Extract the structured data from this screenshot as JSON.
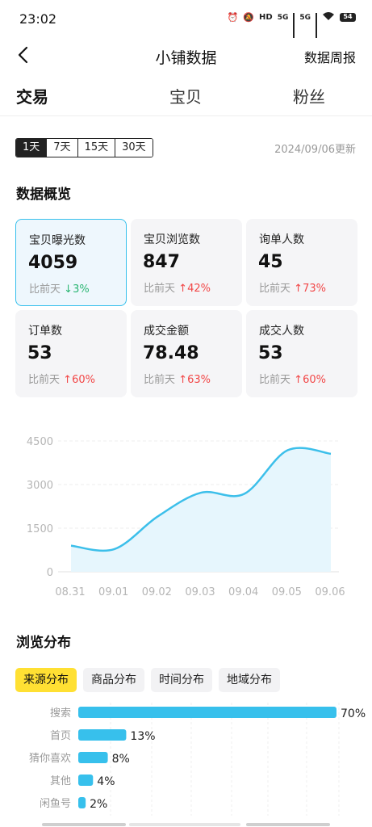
{
  "status": {
    "time": "23:02",
    "battery": "54",
    "net1": "5G",
    "net2": "5G",
    "hd": "HD"
  },
  "nav": {
    "title": "小铺数据",
    "action": "数据周报"
  },
  "tabs": [
    {
      "label": "交易",
      "active": true
    },
    {
      "label": "宝贝",
      "active": false
    },
    {
      "label": "粉丝",
      "active": false
    }
  ],
  "range": {
    "options": [
      "1天",
      "7天",
      "15天",
      "30天"
    ],
    "selected": "1天",
    "updated": "2024/09/06更新"
  },
  "overview": {
    "title": "数据概览",
    "cards": [
      {
        "label": "宝贝曝光数",
        "value": "4059",
        "cmp_prefix": "比前天",
        "arrow": "↓",
        "change": "3%",
        "dir": "down",
        "selected": true
      },
      {
        "label": "宝贝浏览数",
        "value": "847",
        "cmp_prefix": "比前天",
        "arrow": "↑",
        "change": "42%",
        "dir": "up",
        "selected": false
      },
      {
        "label": "询单人数",
        "value": "45",
        "cmp_prefix": "比前天",
        "arrow": "↑",
        "change": "73%",
        "dir": "up",
        "selected": false
      },
      {
        "label": "订单数",
        "value": "53",
        "cmp_prefix": "比前天",
        "arrow": "↑",
        "change": "60%",
        "dir": "up",
        "selected": false
      },
      {
        "label": "成交金额",
        "value": "78.48",
        "cmp_prefix": "比前天",
        "arrow": "↑",
        "change": "63%",
        "dir": "up",
        "selected": false
      },
      {
        "label": "成交人数",
        "value": "53",
        "cmp_prefix": "比前天",
        "arrow": "↑",
        "change": "60%",
        "dir": "up",
        "selected": false
      }
    ]
  },
  "chart_data": {
    "type": "area",
    "x": [
      "08.31",
      "09.01",
      "09.02",
      "09.03",
      "09.04",
      "09.05",
      "09.06"
    ],
    "series": [
      {
        "values": [
          900,
          780,
          1900,
          2720,
          2680,
          4180,
          4059
        ]
      }
    ],
    "yticks": [
      0,
      1500,
      3000,
      4500
    ],
    "ylim": [
      0,
      4500
    ],
    "grid": true,
    "line_color": "#3CBFEA",
    "fill_color": "#E6F6FD"
  },
  "distribution": {
    "title": "浏览分布",
    "tabs": [
      {
        "label": "来源分布",
        "active": true
      },
      {
        "label": "商品分布",
        "active": false
      },
      {
        "label": "时间分布",
        "active": false
      },
      {
        "label": "地域分布",
        "active": false
      }
    ],
    "bar_color": "#37C0EC",
    "items": [
      {
        "label": "搜索",
        "value": 70,
        "text": "70%"
      },
      {
        "label": "首页",
        "value": 13,
        "text": "13%"
      },
      {
        "label": "猜你喜欢",
        "value": 8,
        "text": "8%"
      },
      {
        "label": "其他",
        "value": 4,
        "text": "4%"
      },
      {
        "label": "闲鱼号",
        "value": 2,
        "text": "2%"
      }
    ]
  }
}
